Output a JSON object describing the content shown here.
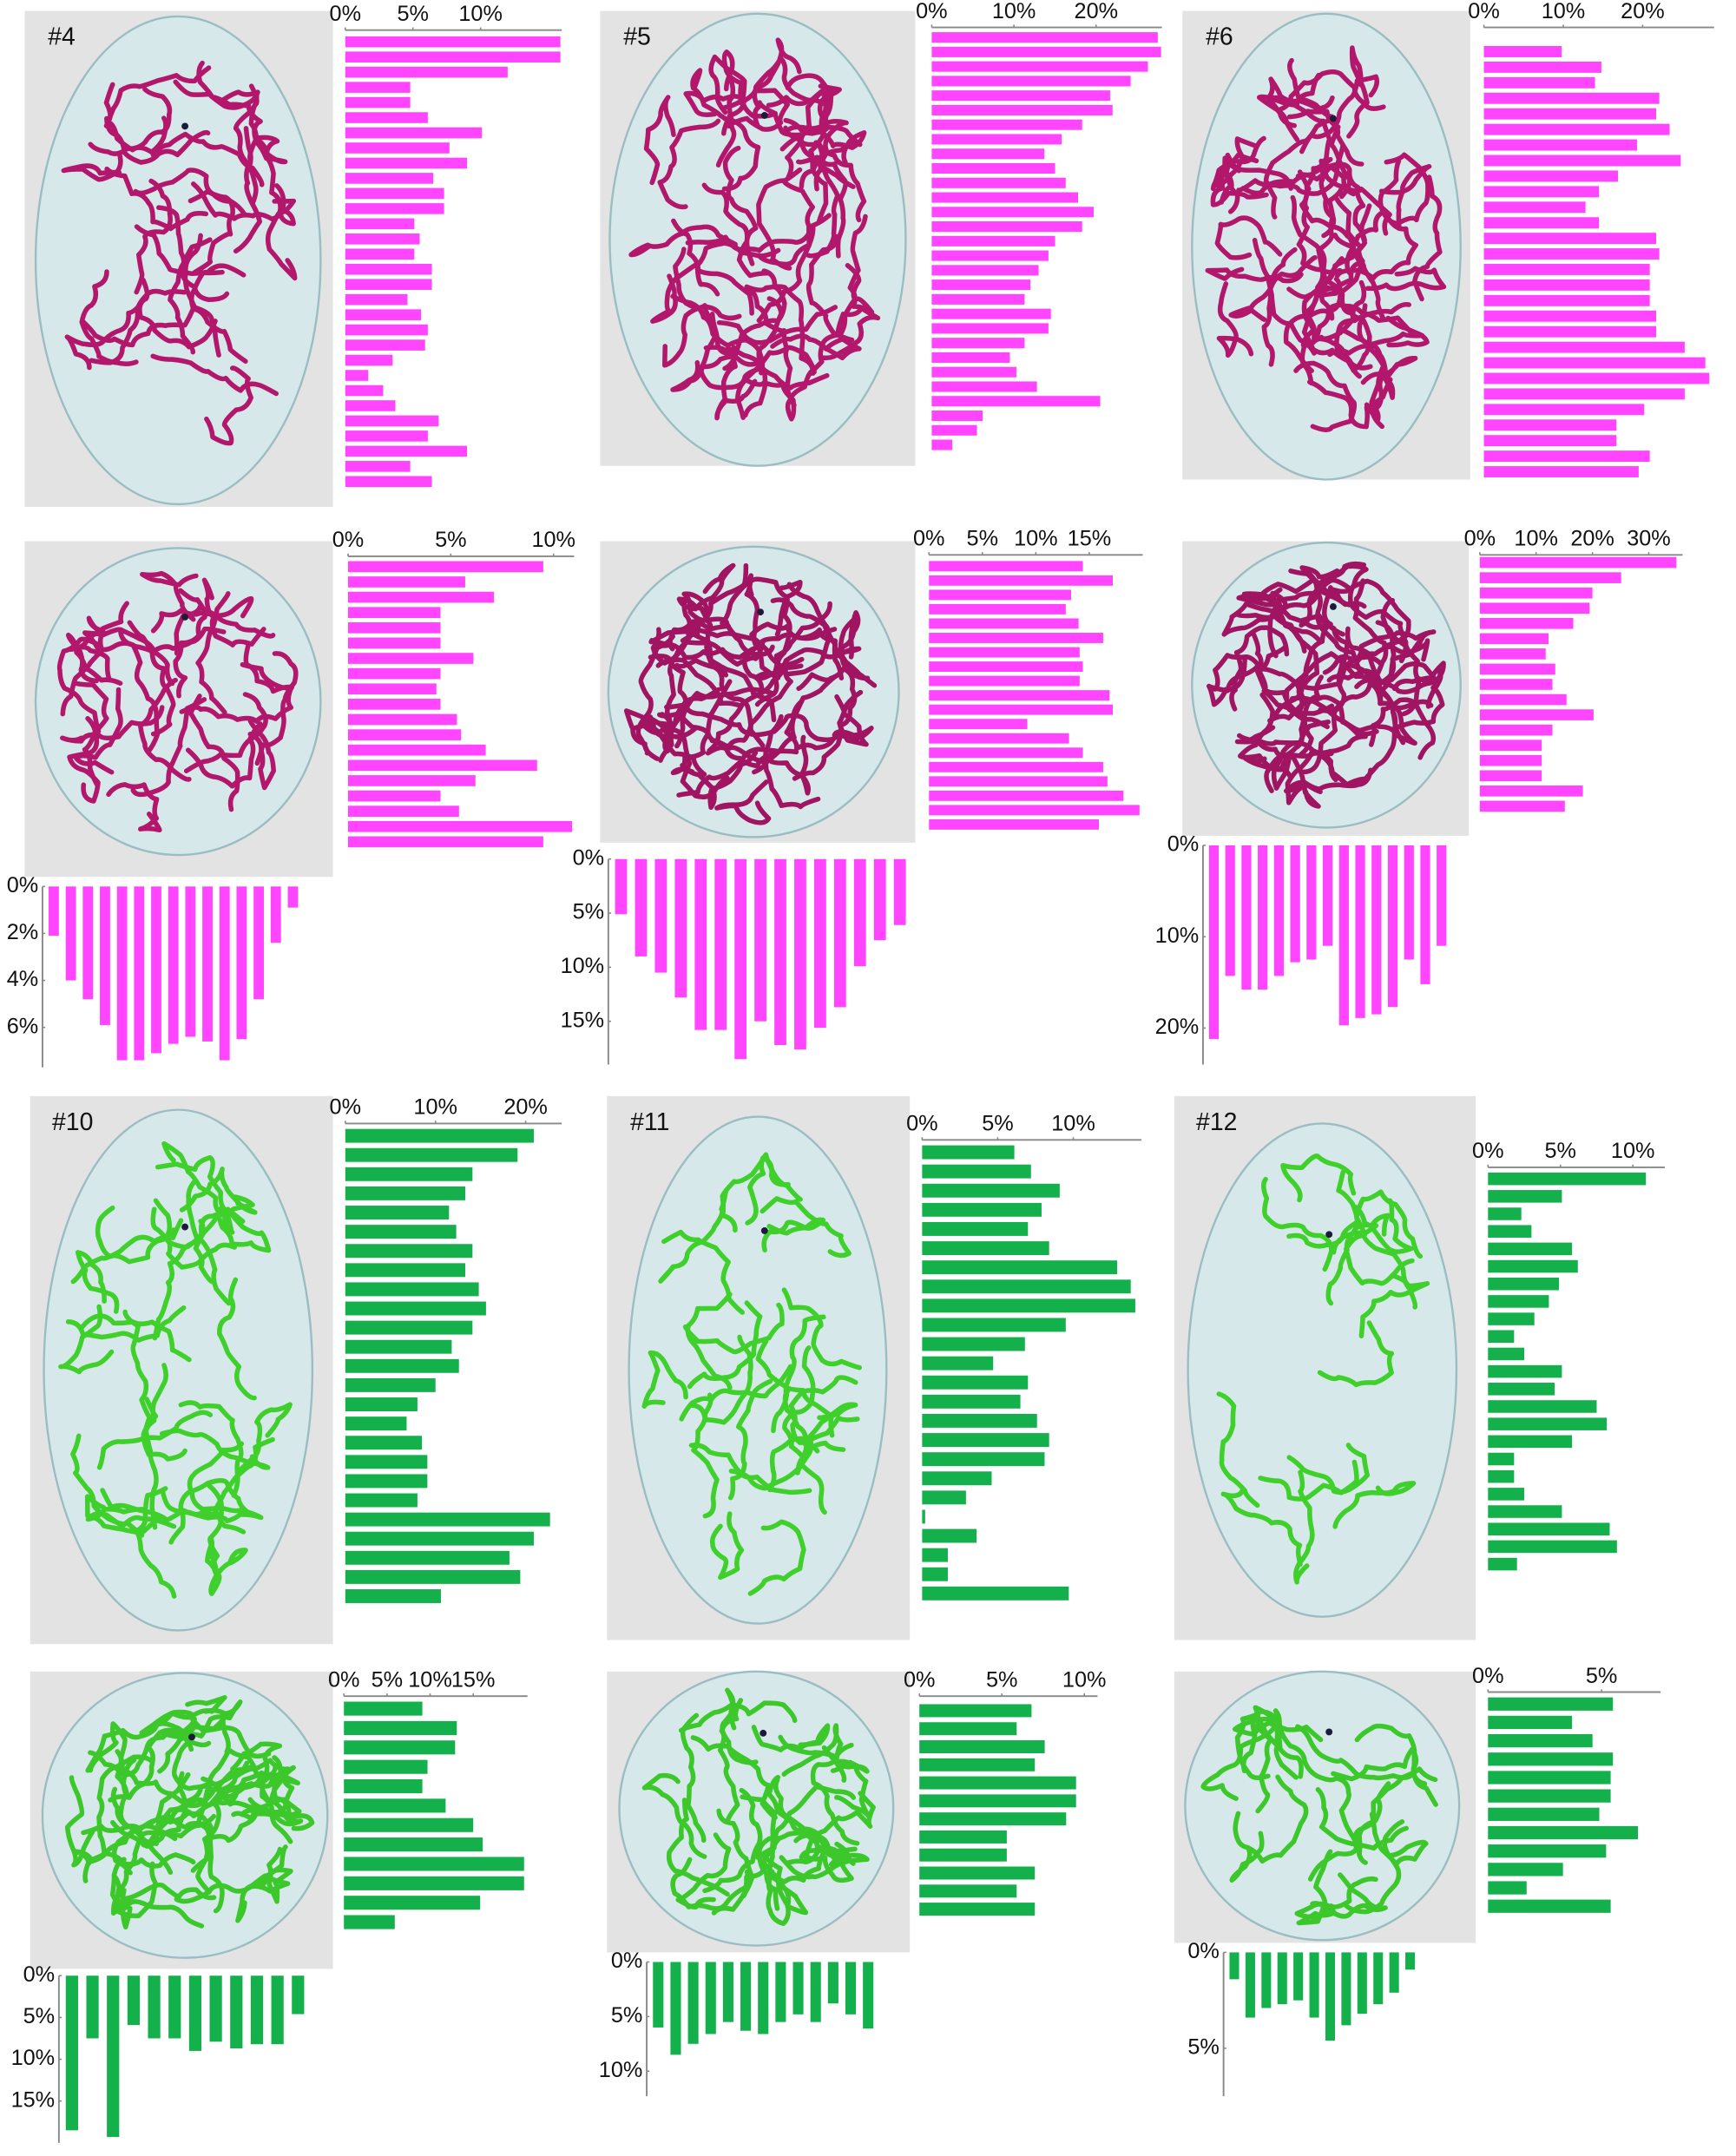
{
  "chart_data": [
    {
      "type": "bar",
      "orientation": "horizontal",
      "title": "#4",
      "color": "#ff45ff",
      "xlim": [
        0,
        16
      ],
      "xticks": [
        {
          "value": 0,
          "label": "0%"
        },
        {
          "value": 5,
          "label": "5%"
        },
        {
          "value": 10,
          "label": "10%"
        }
      ],
      "values": [
        15.9,
        15.9,
        12.0,
        4.8,
        4.8,
        6.1,
        10.1,
        7.7,
        9.0,
        6.5,
        7.3,
        7.3,
        5.1,
        5.5,
        5.1,
        6.4,
        6.4,
        4.6,
        5.6,
        6.1,
        5.9,
        3.5,
        1.7,
        2.8,
        3.7,
        6.9,
        6.1,
        9.0,
        4.8,
        6.4
      ]
    },
    {
      "type": "bar",
      "orientation": "horizontal",
      "title": "#5",
      "color": "#ff45ff",
      "xlim": [
        0,
        28
      ],
      "xticks": [
        {
          "value": 0,
          "label": "0%"
        },
        {
          "value": 10,
          "label": "10%"
        },
        {
          "value": 20,
          "label": "20%"
        }
      ],
      "values": [
        27.5,
        27.9,
        26.3,
        24.2,
        21.7,
        22.0,
        18.3,
        15.8,
        13.7,
        15.0,
        16.3,
        17.8,
        19.7,
        18.3,
        15.0,
        14.2,
        13.0,
        12.0,
        11.3,
        14.5,
        14.2,
        11.3,
        9.5,
        10.3,
        12.8,
        20.5,
        6.2,
        5.5,
        2.5
      ]
    },
    {
      "type": "bar",
      "orientation": "horizontal",
      "title": "#6",
      "color": "#ff45ff",
      "xlim": [
        0,
        29
      ],
      "xticks": [
        {
          "value": 0,
          "label": "0%"
        },
        {
          "value": 10,
          "label": "10%"
        },
        {
          "value": 20,
          "label": "20%"
        }
      ],
      "values": [
        9.8,
        14.8,
        14.0,
        22.1,
        21.7,
        23.4,
        19.3,
        24.8,
        16.9,
        14.5,
        12.8,
        14.5,
        21.7,
        22.1,
        20.9,
        20.9,
        20.9,
        21.7,
        21.7,
        25.3,
        27.9,
        28.4,
        25.3,
        20.2,
        16.7,
        16.7,
        20.9,
        19.5
      ]
    },
    {
      "type": "bar",
      "orientation": "horizontal",
      "color": "#ff45ff",
      "xlim": [
        0,
        11
      ],
      "xticks": [
        {
          "value": 0,
          "label": "0%"
        },
        {
          "value": 5,
          "label": "5%"
        },
        {
          "value": 10,
          "label": "10%"
        }
      ],
      "values": [
        9.5,
        5.7,
        7.1,
        4.5,
        4.5,
        4.5,
        6.1,
        4.5,
        4.3,
        4.5,
        5.3,
        5.5,
        6.7,
        9.2,
        6.2,
        4.5,
        5.4,
        10.9,
        9.5
      ]
    },
    {
      "type": "bar",
      "orientation": "vertical",
      "color": "#ff45ff",
      "ylim": [
        0,
        7.7
      ],
      "yticks": [
        {
          "value": 0,
          "label": "0%"
        },
        {
          "value": 2,
          "label": "2%"
        },
        {
          "value": 4,
          "label": "4%"
        },
        {
          "value": 6,
          "label": "6%"
        }
      ],
      "values": [
        2.1,
        4.0,
        4.8,
        5.9,
        7.4,
        7.4,
        7.1,
        6.7,
        6.4,
        6.6,
        7.4,
        6.5,
        4.8,
        2.4,
        0.9
      ]
    },
    {
      "type": "bar",
      "orientation": "horizontal",
      "color": "#ff45ff",
      "xlim": [
        0,
        20
      ],
      "xticks": [
        {
          "value": 0,
          "label": "0%"
        },
        {
          "value": 5,
          "label": "5%"
        },
        {
          "value": 10,
          "label": "10%"
        },
        {
          "value": 15,
          "label": "15%"
        }
      ],
      "values": [
        14.4,
        17.2,
        13.3,
        12.8,
        14.0,
        16.3,
        14.1,
        14.4,
        14.1,
        16.9,
        17.2,
        9.2,
        13.1,
        14.4,
        16.3,
        16.7,
        18.2,
        19.7,
        15.9
      ]
    },
    {
      "type": "bar",
      "orientation": "vertical",
      "color": "#ff45ff",
      "ylim": [
        0,
        19
      ],
      "yticks": [
        {
          "value": 0,
          "label": "0%"
        },
        {
          "value": 5,
          "label": "5%"
        },
        {
          "value": 10,
          "label": "10%"
        },
        {
          "value": 15,
          "label": "15%"
        }
      ],
      "values": [
        5.1,
        9.0,
        10.5,
        12.8,
        15.8,
        15.8,
        18.5,
        15.0,
        17.2,
        17.6,
        15.6,
        13.7,
        9.9,
        7.5,
        6.1
      ]
    },
    {
      "type": "bar",
      "orientation": "horizontal",
      "color": "#ff45ff",
      "xlim": [
        0,
        36
      ],
      "xticks": [
        {
          "value": 0,
          "label": "0%"
        },
        {
          "value": 10,
          "label": "10%"
        },
        {
          "value": 20,
          "label": "20%"
        },
        {
          "value": 30,
          "label": "30%"
        }
      ],
      "values": [
        34.9,
        25.1,
        20.0,
        19.5,
        16.6,
        12.2,
        11.7,
        13.4,
        12.9,
        15.4,
        20.2,
        12.9,
        11.0,
        11.0,
        11.0,
        18.3,
        15.1
      ]
    },
    {
      "type": "bar",
      "orientation": "vertical",
      "color": "#ff45ff",
      "ylim": [
        0,
        24
      ],
      "yticks": [
        {
          "value": 0,
          "label": "0%"
        },
        {
          "value": 10,
          "label": "10%"
        },
        {
          "value": 20,
          "label": "20%"
        }
      ],
      "values": [
        21.2,
        14.3,
        15.8,
        15.8,
        14.3,
        12.8,
        12.5,
        11.0,
        19.7,
        18.9,
        18.5,
        17.7,
        12.5,
        15.2,
        11.0
      ]
    },
    {
      "type": "bar",
      "orientation": "horizontal",
      "title": "#10",
      "color": "#14b04c",
      "xlim": [
        0,
        24
      ],
      "xticks": [
        {
          "value": 0,
          "label": "0%"
        },
        {
          "value": 10,
          "label": "10%"
        },
        {
          "value": 20,
          "label": "20%"
        }
      ],
      "values": [
        20.9,
        19.1,
        14.1,
        13.3,
        11.5,
        12.3,
        14.1,
        13.3,
        14.8,
        15.6,
        14.1,
        11.8,
        12.6,
        10.0,
        8.0,
        6.8,
        8.5,
        9.1,
        9.1,
        8.0,
        22.7,
        20.9,
        18.2,
        19.4,
        10.6
      ]
    },
    {
      "type": "bar",
      "orientation": "horizontal",
      "title": "#11",
      "color": "#14b04c",
      "xlim": [
        0,
        14.5
      ],
      "xticks": [
        {
          "value": 0,
          "label": "0%"
        },
        {
          "value": 5,
          "label": "5%"
        },
        {
          "value": 10,
          "label": "10%"
        }
      ],
      "values": [
        6.1,
        7.2,
        9.1,
        7.9,
        7.0,
        8.4,
        12.9,
        13.8,
        14.1,
        9.5,
        6.8,
        4.7,
        7.0,
        6.5,
        7.6,
        8.4,
        8.1,
        4.6,
        2.9,
        0.2,
        3.6,
        1.7,
        1.7,
        9.7
      ]
    },
    {
      "type": "bar",
      "orientation": "horizontal",
      "title": "#12",
      "color": "#14b04c",
      "xlim": [
        0,
        12.2
      ],
      "xticks": [
        {
          "value": 0,
          "label": "0%"
        },
        {
          "value": 5,
          "label": "5%"
        },
        {
          "value": 10,
          "label": "10%"
        }
      ],
      "values": [
        10.9,
        5.1,
        2.3,
        3.0,
        5.8,
        6.2,
        4.9,
        4.2,
        3.2,
        1.8,
        2.5,
        5.1,
        4.6,
        7.5,
        8.2,
        5.8,
        1.8,
        1.8,
        2.5,
        5.1,
        8.4,
        8.9,
        2.0
      ]
    },
    {
      "type": "bar",
      "orientation": "horizontal",
      "color": "#14b04c",
      "xlim": [
        0,
        21.3
      ],
      "xticks": [
        {
          "value": 0,
          "label": "0%"
        },
        {
          "value": 5,
          "label": "5%"
        },
        {
          "value": 10,
          "label": "10%"
        },
        {
          "value": 15,
          "label": "15%"
        }
      ],
      "values": [
        9.1,
        13.1,
        12.9,
        9.7,
        9.1,
        11.8,
        15.0,
        16.1,
        20.9,
        20.9,
        15.8,
        5.9
      ]
    },
    {
      "type": "bar",
      "orientation": "horizontal",
      "color": "#14b04c",
      "xlim": [
        0,
        10.8
      ],
      "xticks": [
        {
          "value": 0,
          "label": "0%"
        },
        {
          "value": 5,
          "label": "5%"
        },
        {
          "value": 10,
          "label": "10%"
        }
      ],
      "values": [
        6.8,
        5.9,
        7.6,
        7.0,
        9.5,
        9.5,
        8.9,
        5.3,
        5.3,
        7.0,
        5.9,
        7.0
      ]
    },
    {
      "type": "bar",
      "orientation": "horizontal",
      "color": "#14b04c",
      "xlim": [
        0,
        7.6
      ],
      "xticks": [
        {
          "value": 0,
          "label": "0%"
        },
        {
          "value": 5,
          "label": "5%"
        }
      ],
      "values": [
        5.5,
        3.7,
        4.6,
        5.5,
        5.4,
        5.4,
        4.9,
        6.6,
        5.2,
        3.3,
        1.7,
        5.4
      ]
    },
    {
      "type": "bar",
      "orientation": "vertical",
      "color": "#14b04c",
      "ylim": [
        0,
        20
      ],
      "yticks": [
        {
          "value": 0,
          "label": "0%"
        },
        {
          "value": 5,
          "label": "5%"
        },
        {
          "value": 10,
          "label": "10%"
        },
        {
          "value": 15,
          "label": "15%"
        }
      ],
      "values": [
        18.5,
        7.5,
        19.3,
        5.9,
        7.5,
        7.5,
        9.0,
        7.9,
        8.7,
        8.2,
        8.2,
        4.6
      ]
    },
    {
      "type": "bar",
      "orientation": "vertical",
      "color": "#14b04c",
      "ylim": [
        0,
        12.3
      ],
      "yticks": [
        {
          "value": 0,
          "label": "0%"
        },
        {
          "value": 5,
          "label": "5%"
        },
        {
          "value": 10,
          "label": "10%"
        }
      ],
      "values": [
        6.0,
        8.5,
        7.5,
        6.6,
        5.5,
        6.3,
        6.6,
        5.5,
        4.8,
        5.5,
        3.8,
        4.8,
        6.1
      ]
    },
    {
      "type": "bar",
      "orientation": "vertical",
      "color": "#14b04c",
      "ylim": [
        0,
        7.5
      ],
      "yticks": [
        {
          "value": 0,
          "label": "0%"
        },
        {
          "value": 5,
          "label": "5%"
        }
      ],
      "values": [
        1.4,
        3.4,
        2.9,
        2.7,
        2.5,
        3.4,
        4.6,
        3.8,
        3.2,
        2.7,
        2.1,
        0.9
      ]
    }
  ]
}
